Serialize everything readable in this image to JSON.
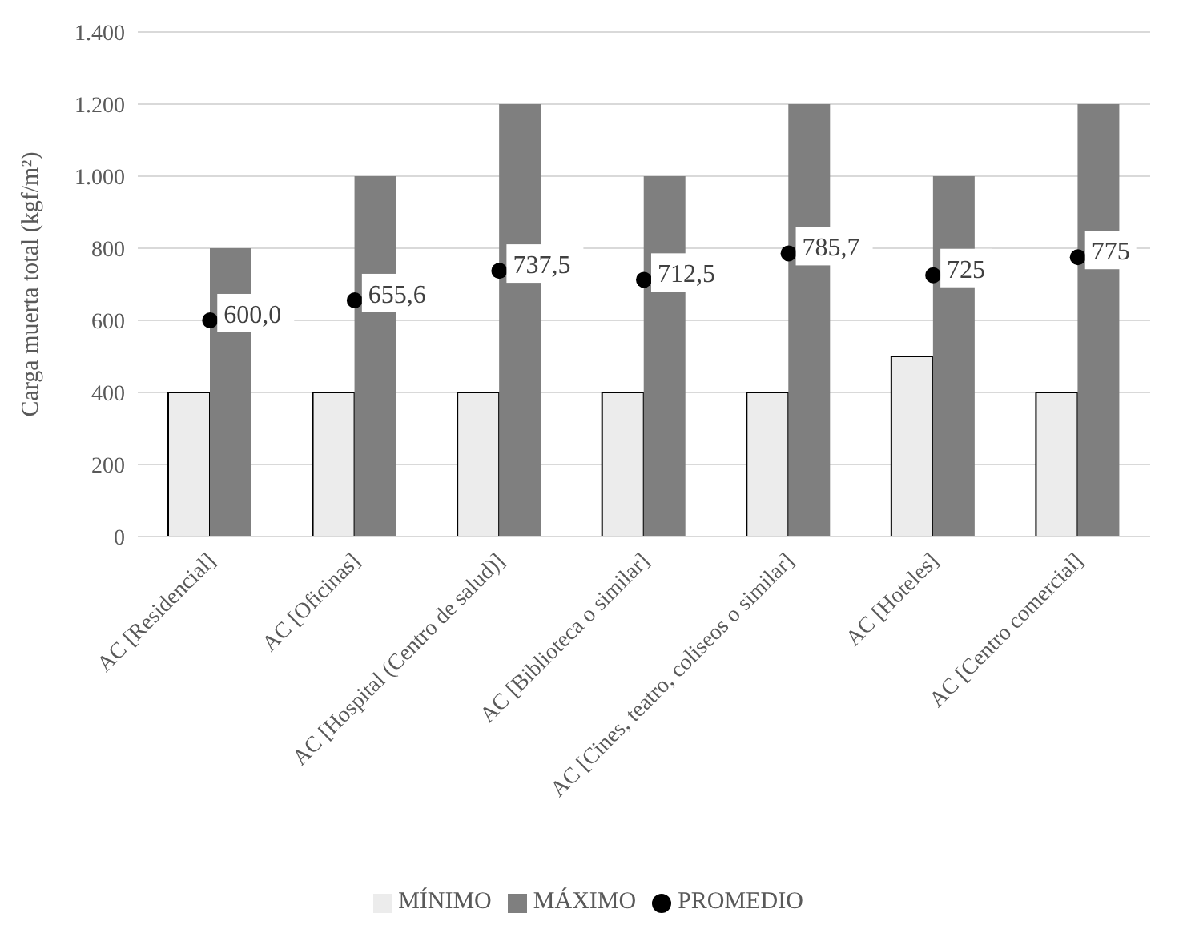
{
  "chart_data": {
    "type": "bar",
    "ylabel": "Carga muerta total (kgf/m²)",
    "categories": [
      "AC [Residencial]",
      "AC [Oficinas]",
      "AC [Hospital (Centro de salud)]",
      "AC [Biblioteca o similar]",
      "AC [Cines, teatro, coliseos o similar]",
      "AC [Hoteles]",
      "AC [Centro comercial]"
    ],
    "series": [
      {
        "name": "MÍNIMO",
        "color": "#ececec",
        "values": [
          400,
          400,
          400,
          400,
          400,
          500,
          400
        ]
      },
      {
        "name": "MÁXIMO",
        "color": "#7f7f7f",
        "values": [
          800,
          1000,
          1200,
          1000,
          1200,
          1000,
          1200
        ]
      },
      {
        "name": "PROMEDIO",
        "type": "scatter",
        "color": "#000000",
        "marker": "circle",
        "values": [
          600.0,
          655.6,
          737.5,
          712.5,
          785.7,
          725,
          775
        ],
        "value_labels": [
          "600,0",
          "655,6",
          "737,5",
          "712,5",
          "785,7",
          "725",
          "775"
        ]
      }
    ],
    "ylim": [
      0,
      1400
    ],
    "yticks": [
      0,
      200,
      400,
      600,
      800,
      {
        "value": 1000,
        "label": "1.000"
      },
      {
        "value": 1200,
        "label": "1.200"
      },
      {
        "value": 1400,
        "label": "1.400"
      }
    ],
    "grid": "y",
    "legend": "bottom"
  }
}
